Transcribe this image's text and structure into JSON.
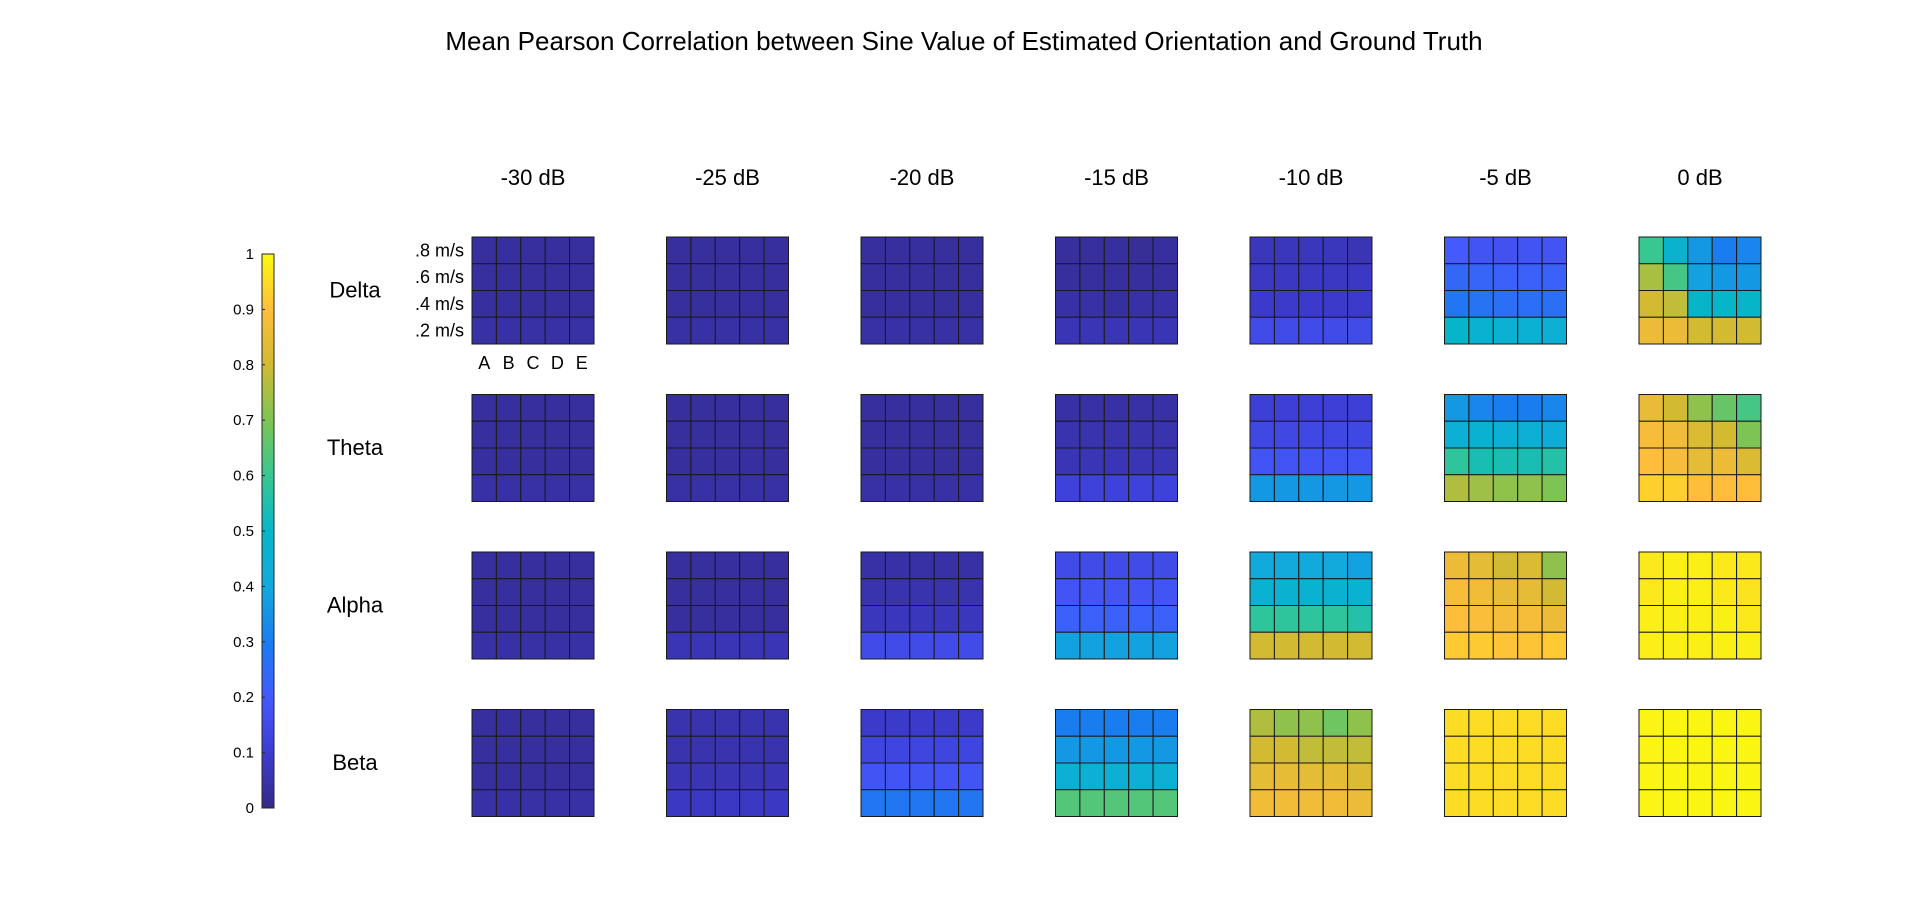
{
  "chart_data": {
    "type": "heatmap",
    "title": "Mean Pearson Correlation between Sine Value of Estimated Orientation and Ground Truth",
    "colormap": "parula",
    "color_range": [
      0,
      1
    ],
    "colorbar_ticks": [
      "0",
      "0.1",
      "0.2",
      "0.3",
      "0.4",
      "0.5",
      "0.6",
      "0.7",
      "0.8",
      "0.9",
      "1"
    ],
    "columns": [
      "-30 dB",
      "-25 dB",
      "-20 dB",
      "-15 dB",
      "-10 dB",
      "-5 dB",
      "0 dB"
    ],
    "rows": [
      "Delta",
      "Theta",
      "Alpha",
      "Beta"
    ],
    "cell_y_labels": [
      ".8 m/s",
      ".6 m/s",
      ".4 m/s",
      ".2 m/s"
    ],
    "cell_x_labels": [
      "A",
      "B",
      "C",
      "D",
      "E"
    ],
    "panels": {
      "Delta": [
        [
          [
            0.03,
            0.03,
            0.03,
            0.03,
            0.03
          ],
          [
            0.03,
            0.03,
            0.03,
            0.03,
            0.03
          ],
          [
            0.03,
            0.03,
            0.03,
            0.03,
            0.03
          ],
          [
            0.04,
            0.04,
            0.04,
            0.04,
            0.04
          ]
        ],
        [
          [
            0.03,
            0.03,
            0.03,
            0.03,
            0.03
          ],
          [
            0.03,
            0.03,
            0.03,
            0.03,
            0.03
          ],
          [
            0.03,
            0.03,
            0.03,
            0.03,
            0.03
          ],
          [
            0.04,
            0.04,
            0.04,
            0.04,
            0.04
          ]
        ],
        [
          [
            0.03,
            0.03,
            0.03,
            0.03,
            0.03
          ],
          [
            0.03,
            0.03,
            0.03,
            0.03,
            0.03
          ],
          [
            0.03,
            0.03,
            0.03,
            0.03,
            0.03
          ],
          [
            0.04,
            0.04,
            0.04,
            0.04,
            0.04
          ]
        ],
        [
          [
            0.03,
            0.03,
            0.03,
            0.02,
            0.03
          ],
          [
            0.03,
            0.03,
            0.03,
            0.03,
            0.03
          ],
          [
            0.04,
            0.04,
            0.03,
            0.04,
            0.04
          ],
          [
            0.06,
            0.06,
            0.06,
            0.06,
            0.06
          ]
        ],
        [
          [
            0.07,
            0.07,
            0.07,
            0.07,
            0.06
          ],
          [
            0.08,
            0.08,
            0.08,
            0.08,
            0.08
          ],
          [
            0.09,
            0.09,
            0.09,
            0.09,
            0.09
          ],
          [
            0.15,
            0.15,
            0.15,
            0.15,
            0.15
          ]
        ],
        [
          [
            0.2,
            0.18,
            0.17,
            0.18,
            0.18
          ],
          [
            0.24,
            0.23,
            0.22,
            0.22,
            0.22
          ],
          [
            0.28,
            0.27,
            0.26,
            0.26,
            0.26
          ],
          [
            0.5,
            0.46,
            0.45,
            0.45,
            0.44
          ]
        ],
        [
          [
            0.6,
            0.47,
            0.36,
            0.3,
            0.32
          ],
          [
            0.75,
            0.62,
            0.38,
            0.36,
            0.36
          ],
          [
            0.8,
            0.78,
            0.5,
            0.5,
            0.5
          ],
          [
            0.86,
            0.86,
            0.8,
            0.8,
            0.8
          ]
        ]
      ],
      "Theta": [
        [
          [
            0.03,
            0.03,
            0.03,
            0.03,
            0.03
          ],
          [
            0.03,
            0.03,
            0.03,
            0.03,
            0.03
          ],
          [
            0.03,
            0.03,
            0.03,
            0.03,
            0.03
          ],
          [
            0.04,
            0.04,
            0.04,
            0.04,
            0.04
          ]
        ],
        [
          [
            0.03,
            0.03,
            0.03,
            0.03,
            0.03
          ],
          [
            0.03,
            0.03,
            0.03,
            0.03,
            0.03
          ],
          [
            0.03,
            0.03,
            0.03,
            0.03,
            0.03
          ],
          [
            0.04,
            0.04,
            0.04,
            0.04,
            0.04
          ]
        ],
        [
          [
            0.03,
            0.03,
            0.03,
            0.03,
            0.03
          ],
          [
            0.03,
            0.03,
            0.03,
            0.03,
            0.03
          ],
          [
            0.03,
            0.03,
            0.03,
            0.03,
            0.03
          ],
          [
            0.04,
            0.04,
            0.04,
            0.04,
            0.04
          ]
        ],
        [
          [
            0.04,
            0.04,
            0.04,
            0.04,
            0.04
          ],
          [
            0.05,
            0.05,
            0.05,
            0.05,
            0.05
          ],
          [
            0.06,
            0.06,
            0.06,
            0.06,
            0.06
          ],
          [
            0.12,
            0.12,
            0.12,
            0.12,
            0.12
          ]
        ],
        [
          [
            0.11,
            0.11,
            0.11,
            0.11,
            0.11
          ],
          [
            0.14,
            0.14,
            0.14,
            0.14,
            0.14
          ],
          [
            0.18,
            0.18,
            0.18,
            0.18,
            0.18
          ],
          [
            0.36,
            0.36,
            0.36,
            0.36,
            0.36
          ]
        ],
        [
          [
            0.36,
            0.32,
            0.3,
            0.3,
            0.32
          ],
          [
            0.44,
            0.46,
            0.44,
            0.44,
            0.42
          ],
          [
            0.58,
            0.54,
            0.54,
            0.54,
            0.56
          ],
          [
            0.76,
            0.74,
            0.72,
            0.72,
            0.7
          ]
        ],
        [
          [
            0.85,
            0.8,
            0.72,
            0.67,
            0.62
          ],
          [
            0.88,
            0.87,
            0.82,
            0.8,
            0.7
          ],
          [
            0.9,
            0.88,
            0.84,
            0.86,
            0.82
          ],
          [
            0.93,
            0.93,
            0.9,
            0.9,
            0.9
          ]
        ]
      ],
      "Alpha": [
        [
          [
            0.03,
            0.03,
            0.03,
            0.03,
            0.03
          ],
          [
            0.03,
            0.03,
            0.03,
            0.03,
            0.03
          ],
          [
            0.03,
            0.03,
            0.03,
            0.03,
            0.03
          ],
          [
            0.04,
            0.04,
            0.04,
            0.04,
            0.04
          ]
        ],
        [
          [
            0.03,
            0.03,
            0.03,
            0.03,
            0.03
          ],
          [
            0.03,
            0.03,
            0.03,
            0.03,
            0.03
          ],
          [
            0.03,
            0.03,
            0.03,
            0.03,
            0.03
          ],
          [
            0.06,
            0.06,
            0.06,
            0.06,
            0.06
          ]
        ],
        [
          [
            0.04,
            0.04,
            0.04,
            0.04,
            0.04
          ],
          [
            0.05,
            0.05,
            0.05,
            0.05,
            0.05
          ],
          [
            0.07,
            0.07,
            0.07,
            0.07,
            0.07
          ],
          [
            0.15,
            0.15,
            0.15,
            0.15,
            0.15
          ]
        ],
        [
          [
            0.15,
            0.15,
            0.15,
            0.15,
            0.15
          ],
          [
            0.18,
            0.18,
            0.18,
            0.18,
            0.18
          ],
          [
            0.22,
            0.22,
            0.22,
            0.22,
            0.22
          ],
          [
            0.38,
            0.38,
            0.38,
            0.38,
            0.38
          ]
        ],
        [
          [
            0.4,
            0.4,
            0.4,
            0.4,
            0.38
          ],
          [
            0.46,
            0.46,
            0.46,
            0.46,
            0.46
          ],
          [
            0.58,
            0.58,
            0.58,
            0.58,
            0.56
          ],
          [
            0.8,
            0.8,
            0.8,
            0.8,
            0.8
          ]
        ],
        [
          [
            0.86,
            0.84,
            0.8,
            0.82,
            0.72
          ],
          [
            0.88,
            0.87,
            0.85,
            0.84,
            0.8
          ],
          [
            0.9,
            0.89,
            0.88,
            0.88,
            0.86
          ],
          [
            0.92,
            0.92,
            0.91,
            0.91,
            0.92
          ]
        ],
        [
          [
            0.97,
            0.98,
            0.98,
            0.97,
            0.97
          ],
          [
            0.97,
            0.98,
            0.98,
            0.97,
            0.96
          ],
          [
            0.98,
            0.98,
            0.98,
            0.98,
            0.97
          ],
          [
            0.98,
            0.98,
            0.98,
            0.98,
            0.98
          ]
        ]
      ],
      "Beta": [
        [
          [
            0.03,
            0.03,
            0.03,
            0.03,
            0.03
          ],
          [
            0.03,
            0.03,
            0.03,
            0.03,
            0.03
          ],
          [
            0.03,
            0.03,
            0.03,
            0.03,
            0.03
          ],
          [
            0.04,
            0.04,
            0.04,
            0.04,
            0.04
          ]
        ],
        [
          [
            0.05,
            0.05,
            0.05,
            0.05,
            0.05
          ],
          [
            0.05,
            0.05,
            0.05,
            0.05,
            0.05
          ],
          [
            0.06,
            0.06,
            0.06,
            0.06,
            0.06
          ],
          [
            0.08,
            0.08,
            0.08,
            0.08,
            0.08
          ]
        ],
        [
          [
            0.09,
            0.09,
            0.09,
            0.09,
            0.09
          ],
          [
            0.13,
            0.13,
            0.13,
            0.13,
            0.13
          ],
          [
            0.18,
            0.18,
            0.18,
            0.18,
            0.18
          ],
          [
            0.28,
            0.28,
            0.28,
            0.28,
            0.28
          ]
        ],
        [
          [
            0.3,
            0.3,
            0.3,
            0.3,
            0.3
          ],
          [
            0.36,
            0.36,
            0.36,
            0.36,
            0.36
          ],
          [
            0.44,
            0.44,
            0.44,
            0.44,
            0.44
          ],
          [
            0.64,
            0.64,
            0.64,
            0.64,
            0.64
          ]
        ],
        [
          [
            0.76,
            0.72,
            0.72,
            0.68,
            0.72
          ],
          [
            0.8,
            0.8,
            0.78,
            0.78,
            0.78
          ],
          [
            0.84,
            0.84,
            0.84,
            0.84,
            0.82
          ],
          [
            0.87,
            0.87,
            0.87,
            0.87,
            0.86
          ]
        ],
        [
          [
            0.95,
            0.95,
            0.95,
            0.95,
            0.95
          ],
          [
            0.95,
            0.95,
            0.95,
            0.95,
            0.95
          ],
          [
            0.95,
            0.95,
            0.95,
            0.95,
            0.95
          ],
          [
            0.95,
            0.95,
            0.95,
            0.95,
            0.95
          ]
        ],
        [
          [
            0.99,
            0.99,
            0.99,
            0.99,
            0.99
          ],
          [
            0.99,
            0.99,
            0.99,
            0.99,
            0.99
          ],
          [
            0.99,
            0.99,
            0.99,
            0.99,
            0.99
          ],
          [
            0.99,
            0.99,
            0.99,
            0.99,
            0.99
          ]
        ]
      ]
    }
  }
}
